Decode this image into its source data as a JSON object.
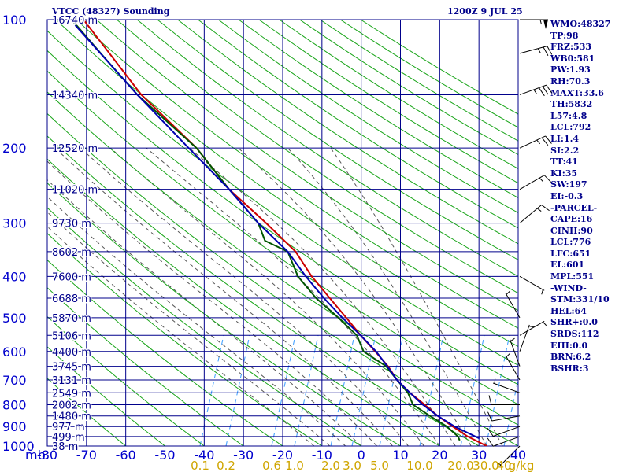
{
  "header": {
    "title": "VTCC (48327) Sounding",
    "date": "1200Z  9 JUL 25"
  },
  "stats": [
    "WMO:48327",
    "TP:98",
    "FRZ:533",
    "WB0:581",
    "PW:1.93",
    "RH:70.3",
    "MAXT:33.6",
    "TH:5832",
    "L57:4.8",
    "LCL:792",
    "LI:1.4",
    "SI:2.2",
    "TT:41",
    "KI:35",
    "SW:197",
    "EI:-0.3",
    "-PARCEL-",
    "CAPE:16",
    "CINH:90",
    "LCL:776",
    "LFC:651",
    "EL:601",
    "MPL:551",
    "-WIND-",
    "STM:331/10",
    "HEL:64",
    "SHR+:0.0",
    "SRDS:112",
    "EHI:0.0",
    "BRN:6.2",
    "BSHR:3"
  ],
  "colors": {
    "axis": "#0000cd",
    "isobar": "#00008b",
    "dry_adiabat": "#1aa51a",
    "moist_adiabat": "#555555",
    "mixing_ratio": "#3399ff",
    "temperature": "#cc0000",
    "dewpoint": "#005500",
    "parcel": "#0000b0",
    "wind": "#000000"
  },
  "chart_data": {
    "type": "line",
    "skew_t": true,
    "ylabel": "mb",
    "y_log_scale": true,
    "ylim": [
      1000,
      100
    ],
    "xlim": [
      -80,
      40
    ],
    "pressure_ticks": [
      100,
      200,
      300,
      400,
      500,
      600,
      700,
      800,
      900,
      1000
    ],
    "temperature_ticks": [
      -80,
      -70,
      -60,
      -50,
      -40,
      -30,
      -20,
      -10,
      0,
      10,
      20,
      30,
      40
    ],
    "height_labels": [
      {
        "p": 100,
        "label": "16740 m"
      },
      {
        "p": 150,
        "label": "14340 m"
      },
      {
        "p": 200,
        "label": "12520 m"
      },
      {
        "p": 250,
        "label": "11020 m"
      },
      {
        "p": 300,
        "label": "9730 m"
      },
      {
        "p": 350,
        "label": "8602 m"
      },
      {
        "p": 400,
        "label": "7600 m"
      },
      {
        "p": 450,
        "label": "6688 m"
      },
      {
        "p": 500,
        "label": "5870 m"
      },
      {
        "p": 550,
        "label": "5106 m"
      },
      {
        "p": 600,
        "label": "4400 m"
      },
      {
        "p": 650,
        "label": "3745 m"
      },
      {
        "p": 700,
        "label": "3131 m"
      },
      {
        "p": 750,
        "label": "2549 m"
      },
      {
        "p": 800,
        "label": "2002 m"
      },
      {
        "p": 850,
        "label": "1480 m"
      },
      {
        "p": 900,
        "label": "977 m"
      },
      {
        "p": 950,
        "label": "499 m"
      },
      {
        "p": 1000,
        "label": "38 m"
      }
    ],
    "mixing_ratio_labels": [
      "0.1",
      "0.2",
      "0.6",
      "1.0",
      "2.0",
      "3.0",
      "5.0",
      "10.0",
      "20.0",
      "30.0",
      "40",
      "g/kg"
    ],
    "mixing_ratio_positions": [
      254,
      287,
      345,
      374,
      420,
      447,
      482,
      533,
      585,
      617,
      640
    ],
    "series": [
      {
        "name": "Temperature",
        "points": [
          [
            1000,
            32
          ],
          [
            950,
            27
          ],
          [
            900,
            23
          ],
          [
            850,
            19
          ],
          [
            800,
            15.5
          ],
          [
            750,
            11.5
          ],
          [
            700,
            8
          ],
          [
            650,
            5.5
          ],
          [
            600,
            2
          ],
          [
            550,
            -2
          ],
          [
            500,
            -6
          ],
          [
            450,
            -10.5
          ],
          [
            400,
            -15.5
          ],
          [
            350,
            -20
          ],
          [
            300,
            -28
          ],
          [
            250,
            -38
          ],
          [
            200,
            -47
          ],
          [
            150,
            -62
          ],
          [
            100,
            -78
          ]
        ]
      },
      {
        "name": "Dewpoint",
        "points": [
          [
            970,
            25
          ],
          [
            950,
            24.5
          ],
          [
            900,
            21.5
          ],
          [
            850,
            17
          ],
          [
            800,
            12.5
          ],
          [
            750,
            11
          ],
          [
            700,
            8
          ],
          [
            650,
            5
          ],
          [
            600,
            -1
          ],
          [
            550,
            -3
          ],
          [
            500,
            -8
          ],
          [
            450,
            -14
          ],
          [
            400,
            -19
          ],
          [
            350,
            -22
          ],
          [
            330,
            -28
          ],
          [
            300,
            -30
          ],
          [
            250,
            -38
          ],
          [
            200,
            -47
          ],
          [
            150,
            -63
          ],
          [
            120,
            -73
          ],
          [
            100,
            -81
          ]
        ]
      },
      {
        "name": "Parcel",
        "points": [
          [
            960,
            30
          ],
          [
            900,
            23.5
          ],
          [
            850,
            19
          ],
          [
            800,
            15
          ],
          [
            750,
            11.5
          ],
          [
            700,
            8
          ],
          [
            650,
            5.3
          ],
          [
            600,
            2.2
          ],
          [
            550,
            -2
          ],
          [
            500,
            -7
          ],
          [
            450,
            -12
          ],
          [
            400,
            -17
          ],
          [
            350,
            -22
          ],
          [
            300,
            -30
          ],
          [
            250,
            -38
          ],
          [
            200,
            -49
          ],
          [
            150,
            -63
          ],
          [
            115,
            -75
          ],
          [
            103,
            -80
          ]
        ]
      }
    ],
    "wind_barbs": [
      {
        "p": 1000,
        "dir": 225,
        "spd": 5
      },
      {
        "p": 950,
        "dir": 250,
        "spd": 10
      },
      {
        "p": 900,
        "dir": 250,
        "spd": 10
      },
      {
        "p": 850,
        "dir": 260,
        "spd": 10
      },
      {
        "p": 800,
        "dir": 270,
        "spd": 10
      },
      {
        "p": 750,
        "dir": 290,
        "spd": 5
      },
      {
        "p": 700,
        "dir": 330,
        "spd": 5
      },
      {
        "p": 650,
        "dir": 340,
        "spd": 5
      },
      {
        "p": 600,
        "dir": 20,
        "spd": 5
      },
      {
        "p": 550,
        "dir": 60,
        "spd": 5
      },
      {
        "p": 500,
        "dir": 330,
        "spd": 5
      },
      {
        "p": 400,
        "dir": 120,
        "spd": 5
      },
      {
        "p": 300,
        "dir": 50,
        "spd": 15
      },
      {
        "p": 250,
        "dir": 60,
        "spd": 15
      },
      {
        "p": 200,
        "dir": 65,
        "spd": 25
      },
      {
        "p": 150,
        "dir": 70,
        "spd": 35
      },
      {
        "p": 120,
        "dir": 75,
        "spd": 25
      },
      {
        "p": 100,
        "dir": 90,
        "spd": 55
      }
    ]
  }
}
